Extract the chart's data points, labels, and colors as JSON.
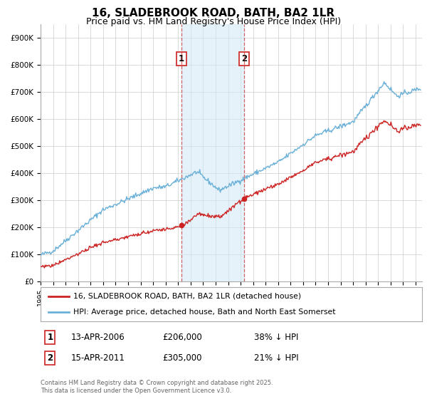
{
  "title": "16, SLADEBROOK ROAD, BATH, BA2 1LR",
  "subtitle": "Price paid vs. HM Land Registry's House Price Index (HPI)",
  "title_fontsize": 11,
  "subtitle_fontsize": 9,
  "ylim": [
    0,
    950000
  ],
  "yticks": [
    0,
    100000,
    200000,
    300000,
    400000,
    500000,
    600000,
    700000,
    800000,
    900000
  ],
  "ytick_labels": [
    "£0",
    "£100K",
    "£200K",
    "£300K",
    "£400K",
    "£500K",
    "£600K",
    "£700K",
    "£800K",
    "£900K"
  ],
  "hpi_color": "#6ab0d8",
  "price_color": "#cc2222",
  "marker_color": "#cc2222",
  "sale1_date": 2006.28,
  "sale1_price": 206000,
  "sale2_date": 2011.29,
  "sale2_price": 305000,
  "vline1_x": 2006.28,
  "vline2_x": 2011.29,
  "shade_color": "#d0e8f5",
  "shade_alpha": 0.55,
  "grid_color": "#cccccc",
  "bg_color": "#ffffff",
  "legend1_label": "16, SLADEBROOK ROAD, BATH, BA2 1LR (detached house)",
  "legend2_label": "HPI: Average price, detached house, Bath and North East Somerset",
  "table_row1": [
    "1",
    "13-APR-2006",
    "£206,000",
    "38% ↓ HPI"
  ],
  "table_row2": [
    "2",
    "15-APR-2011",
    "£305,000",
    "21% ↓ HPI"
  ],
  "footnote": "Contains HM Land Registry data © Crown copyright and database right 2025.\nThis data is licensed under the Open Government Licence v3.0.",
  "xmin": 1995,
  "xmax": 2025.5
}
